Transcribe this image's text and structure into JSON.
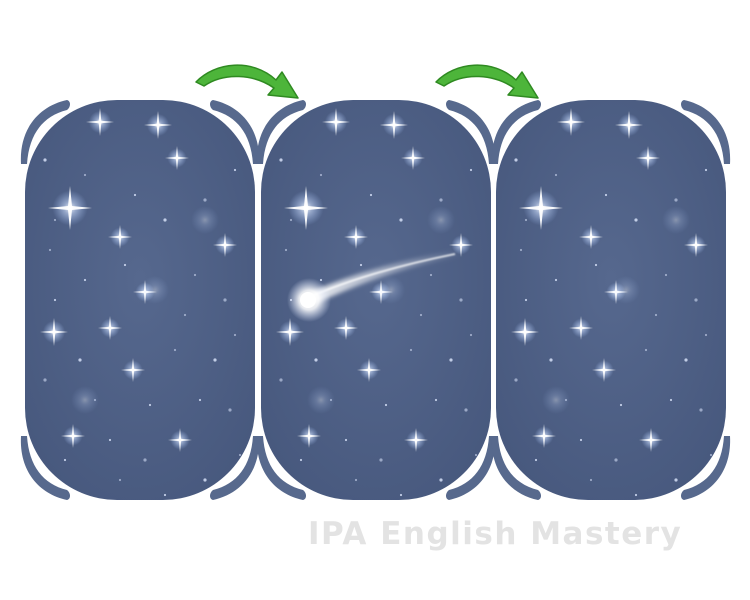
{
  "diagram": {
    "panels": [
      {
        "id": "panel-1",
        "shows_shooting_star": false
      },
      {
        "id": "panel-2",
        "shows_shooting_star": true
      },
      {
        "id": "panel-3",
        "shows_shooting_star": false
      }
    ],
    "arrows": [
      {
        "from": "panel-1",
        "to": "panel-2"
      },
      {
        "from": "panel-2",
        "to": "panel-3"
      }
    ]
  },
  "colors": {
    "sky": "#4e5f84",
    "sky_edge": "#3f4f74",
    "bracket": "#57698d",
    "arrow": "#4db53a",
    "arrow_dark": "#2f8a21",
    "star": "#ffffff",
    "star_glow": "#a9c8ff",
    "watermark": "#e3e3e3"
  },
  "icons": [
    "green-curved-arrow-icon",
    "shooting-star-icon",
    "sparkle-star-icon"
  ],
  "watermark": "IPA English Mastery"
}
